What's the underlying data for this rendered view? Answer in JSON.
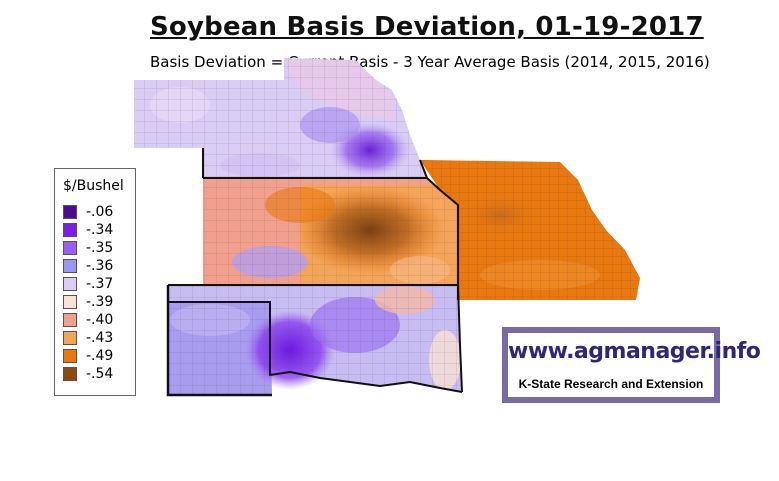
{
  "title": "Soybean Basis Deviation, 01-19-2017",
  "subtitle": "Basis Deviation = Current Basis - 3 Year Average Basis (2014, 2015, 2016)",
  "legend": {
    "title": "$/Bushel",
    "items": [
      {
        "label": "-.06",
        "color": "#4b0c91"
      },
      {
        "label": "-.34",
        "color": "#7d1ee8"
      },
      {
        "label": "-.35",
        "color": "#9a5ef0"
      },
      {
        "label": "-.36",
        "color": "#9a98f2"
      },
      {
        "label": "-.37",
        "color": "#d9cdf5"
      },
      {
        "label": "-.39",
        "color": "#fbe0d4"
      },
      {
        "label": "-.40",
        "color": "#f2a08e"
      },
      {
        "label": "-.43",
        "color": "#f5a55a"
      },
      {
        "label": "-.49",
        "color": "#e9780f"
      },
      {
        "label": "-.54",
        "color": "#8b4a10"
      }
    ]
  },
  "logo": {
    "url": "www.agmanager.info",
    "org": "K-State Research and Extension"
  }
}
